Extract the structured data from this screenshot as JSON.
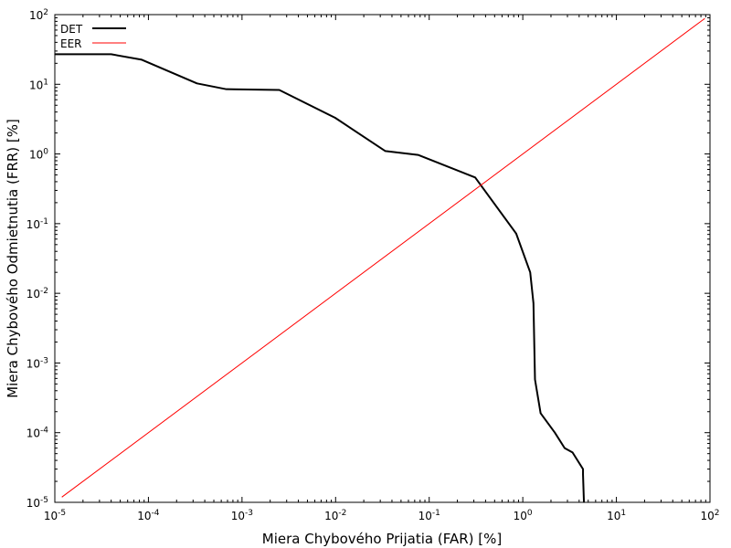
{
  "chart_data": {
    "type": "line",
    "title": "",
    "xlabel": "Miera Chybového Prijatia (FAR) [%]",
    "ylabel": "Miera Chybového Odmietnutia (FRR) [%]",
    "xscale": "log",
    "yscale": "log",
    "xlim": [
      1e-05,
      100
    ],
    "ylim": [
      1e-05,
      100
    ],
    "x_ticks": [
      {
        "base": "10",
        "exp": "-5"
      },
      {
        "base": "10",
        "exp": "-4"
      },
      {
        "base": "10",
        "exp": "-3"
      },
      {
        "base": "10",
        "exp": "-2"
      },
      {
        "base": "10",
        "exp": "-1"
      },
      {
        "base": "10",
        "exp": "0"
      },
      {
        "base": "10",
        "exp": "1"
      },
      {
        "base": "10",
        "exp": "2"
      }
    ],
    "y_ticks": [
      {
        "base": "10",
        "exp": "-5"
      },
      {
        "base": "10",
        "exp": "-4"
      },
      {
        "base": "10",
        "exp": "-3"
      },
      {
        "base": "10",
        "exp": "-2"
      },
      {
        "base": "10",
        "exp": "-1"
      },
      {
        "base": "10",
        "exp": "0"
      },
      {
        "base": "10",
        "exp": "1"
      },
      {
        "base": "10",
        "exp": "2"
      }
    ],
    "grid": false,
    "legend_position": "top-left",
    "series": [
      {
        "name": "DET",
        "color": "#000000",
        "x": [
          1e-05,
          4e-05,
          8.5e-05,
          0.00033,
          0.00068,
          0.0025,
          0.0099,
          0.034,
          0.076,
          0.31,
          0.85,
          1.2,
          1.3,
          1.35,
          1.55,
          2.2,
          2.8,
          3.4,
          4.4,
          4.4,
          4.5
        ],
        "y": [
          27,
          27,
          22.5,
          10.3,
          8.5,
          8.3,
          3.3,
          1.1,
          0.97,
          0.46,
          0.072,
          0.02,
          0.0072,
          0.00058,
          0.00019,
          0.0001,
          6e-05,
          5.2e-05,
          3e-05,
          2.5e-05,
          1e-05
        ]
      },
      {
        "name": "EER",
        "color": "#ff0000",
        "x": [
          1.2e-05,
          87
        ],
        "y": [
          1.2e-05,
          87
        ]
      }
    ]
  }
}
